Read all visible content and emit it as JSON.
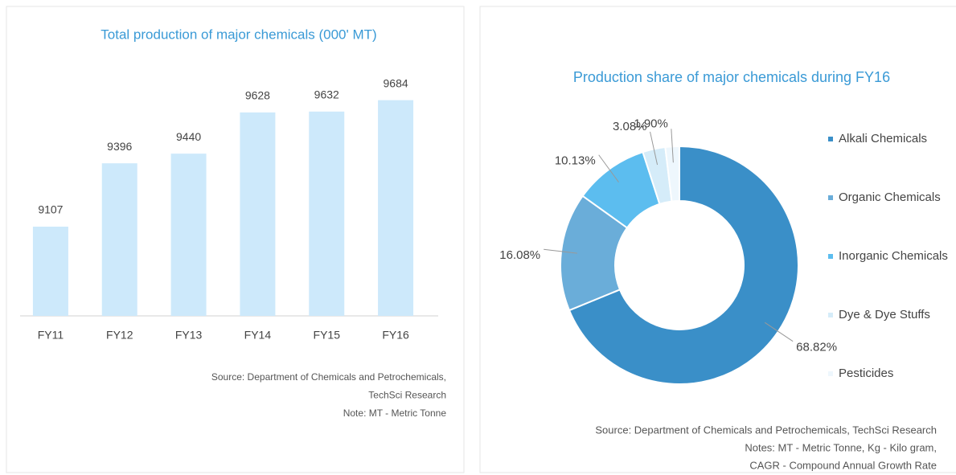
{
  "chart_data": [
    {
      "type": "bar",
      "title": "Total production of major chemicals (000' MT)",
      "categories": [
        "FY11",
        "FY12",
        "FY13",
        "FY14",
        "FY15",
        "FY16"
      ],
      "values": [
        9107,
        9396,
        9440,
        9628,
        9632,
        9684
      ],
      "color": "#cde9fb",
      "ylim": [
        8700,
        9800
      ],
      "notes": [
        "Source: Department of Chemicals and Petrochemicals,",
        "TechSci Research",
        "Note: MT - Metric Tonne"
      ]
    },
    {
      "type": "pie",
      "title": "Production share of major chemicals during FY16",
      "categories": [
        "Alkali Chemicals",
        "Organic Chemicals",
        "Inorganic Chemicals",
        "Dye & Dye Stuffs",
        "Pesticides"
      ],
      "values": [
        68.82,
        16.08,
        10.13,
        3.08,
        1.9
      ],
      "value_labels": [
        "68.82%",
        "16.08%",
        "10.13%",
        "3.08%",
        "1.90%"
      ],
      "colors": [
        "#3a8fc8",
        "#6aadd9",
        "#5cbdef",
        "#d5ecf9",
        "#eef7fd"
      ],
      "notes": [
        "Source: Department of Chemicals and Petrochemicals, TechSci Research",
        "Notes: MT - Metric Tonne, Kg - Kilo gram,",
        "CAGR - Compound Annual Growth Rate"
      ]
    }
  ]
}
